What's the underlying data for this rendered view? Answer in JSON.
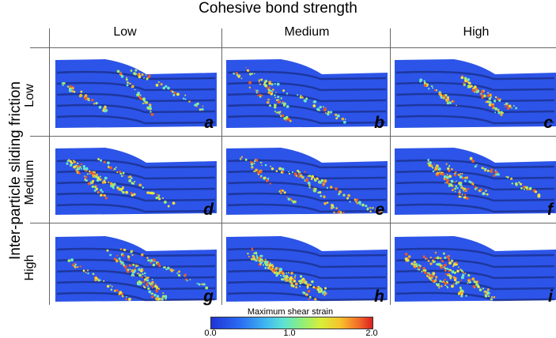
{
  "top_title": "Cohesive bond strength",
  "side_title": "Inter-particle sliding friction",
  "columns": [
    "Low",
    "Medium",
    "High"
  ],
  "rows": [
    "Low",
    "Medium",
    "High"
  ],
  "panel_labels": [
    "a",
    "b",
    "c",
    "d",
    "e",
    "f",
    "g",
    "h",
    "i"
  ],
  "colorbar": {
    "title": "Maximum shear strain",
    "ticks": [
      "0.0",
      "1.0",
      "2.0"
    ],
    "colors": [
      "#1f33d6",
      "#2a6df2",
      "#3fb8f0",
      "#5fe3d2",
      "#8cef7a",
      "#d8ee3a",
      "#f7c22b",
      "#f2662a",
      "#d91f1f"
    ]
  }
}
